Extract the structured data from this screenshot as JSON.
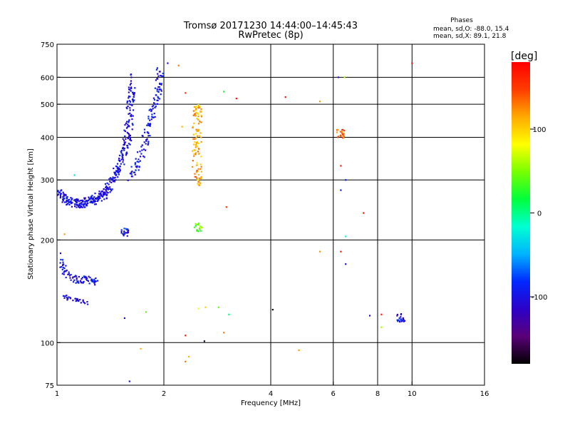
{
  "chart_data": {
    "type": "scatter",
    "title": "Tromsø 20171230 14:44:00–14:45:43",
    "subtitle": "RwPretec (8p)",
    "stats": {
      "heading": "Phases",
      "line1": "mean, sd,O: -88.0, 15.4",
      "line2": "mean, sd,X: 89.1, 21.8"
    },
    "xlabel": "Frequency [MHz]",
    "ylabel": "Stationary phase Virtual Height [km]",
    "x_scale": "log",
    "y_scale": "log",
    "xlim": [
      1,
      16
    ],
    "ylim": [
      75,
      750
    ],
    "x_ticks": [
      1,
      2,
      4,
      6,
      8,
      10,
      16
    ],
    "y_ticks": [
      75,
      100,
      200,
      300,
      400,
      500,
      600,
      750
    ],
    "x_gridlines": [
      2,
      4,
      6,
      8,
      10
    ],
    "y_gridlines": [
      100,
      200,
      300,
      400,
      500,
      600
    ],
    "grid": true,
    "colorbar": {
      "label": "[deg]",
      "range": [
        -180,
        180
      ],
      "ticks": [
        100,
        0,
        -100
      ],
      "colors": [
        "#000000",
        "#5a0078",
        "#2d00c8",
        "#0028ff",
        "#00b4ff",
        "#00ffd2",
        "#00ff3c",
        "#78ff00",
        "#ffff00",
        "#ffaa00",
        "#ff3c00",
        "#ff0000"
      ]
    },
    "o_mode_trace": [
      {
        "f": 1.0,
        "h": 275
      },
      {
        "f": 1.05,
        "h": 265
      },
      {
        "f": 1.1,
        "h": 258
      },
      {
        "f": 1.15,
        "h": 256
      },
      {
        "f": 1.2,
        "h": 257
      },
      {
        "f": 1.25,
        "h": 260
      },
      {
        "f": 1.3,
        "h": 265
      },
      {
        "f": 1.35,
        "h": 272
      },
      {
        "f": 1.4,
        "h": 285
      },
      {
        "f": 1.45,
        "h": 305
      },
      {
        "f": 1.5,
        "h": 330
      },
      {
        "f": 1.55,
        "h": 365
      },
      {
        "f": 1.58,
        "h": 400
      },
      {
        "f": 1.6,
        "h": 450
      },
      {
        "f": 1.62,
        "h": 520
      },
      {
        "f": 1.63,
        "h": 600
      }
    ],
    "x_mode_trace": [
      {
        "f": 1.6,
        "h": 300
      },
      {
        "f": 1.68,
        "h": 330
      },
      {
        "f": 1.75,
        "h": 370
      },
      {
        "f": 1.8,
        "h": 420
      },
      {
        "f": 1.85,
        "h": 470
      },
      {
        "f": 1.9,
        "h": 520
      },
      {
        "f": 1.93,
        "h": 570
      },
      {
        "f": 1.96,
        "h": 630
      }
    ],
    "e_layer_trace": [
      {
        "f": 1.02,
        "h": 180
      },
      {
        "f": 1.05,
        "h": 162
      },
      {
        "f": 1.08,
        "h": 155
      },
      {
        "f": 1.15,
        "h": 153
      },
      {
        "f": 1.2,
        "h": 153
      },
      {
        "f": 1.25,
        "h": 152
      },
      {
        "f": 1.3,
        "h": 150
      }
    ],
    "e_layer_low_trace": [
      {
        "f": 1.03,
        "h": 138
      },
      {
        "f": 1.08,
        "h": 134
      },
      {
        "f": 1.15,
        "h": 132
      },
      {
        "f": 1.22,
        "h": 131
      }
    ],
    "clusters": [
      {
        "f": 1.55,
        "h": 210,
        "phase": -95
      },
      {
        "f": 2.48,
        "h": 380,
        "phase": 115
      },
      {
        "f": 2.5,
        "h": 218,
        "phase": 40
      },
      {
        "f": 6.3,
        "h": 410,
        "phase": 140
      },
      {
        "f": 9.3,
        "h": 118,
        "phase": -100
      }
    ],
    "scatter_points": [
      {
        "f": 2.05,
        "h": 660,
        "phase": -100
      },
      {
        "f": 2.2,
        "h": 650,
        "phase": 130
      },
      {
        "f": 2.25,
        "h": 430,
        "phase": 110
      },
      {
        "f": 2.3,
        "h": 540,
        "phase": 150
      },
      {
        "f": 2.95,
        "h": 545,
        "phase": 20
      },
      {
        "f": 3.2,
        "h": 520,
        "phase": 170
      },
      {
        "f": 4.4,
        "h": 525,
        "phase": 170
      },
      {
        "f": 5.5,
        "h": 510,
        "phase": 120
      },
      {
        "f": 6.2,
        "h": 600,
        "phase": -100
      },
      {
        "f": 6.45,
        "h": 600,
        "phase": 60
      },
      {
        "f": 6.3,
        "h": 330,
        "phase": 170
      },
      {
        "f": 6.3,
        "h": 280,
        "phase": -90
      },
      {
        "f": 6.5,
        "h": 300,
        "phase": -90
      },
      {
        "f": 6.5,
        "h": 205,
        "phase": -20
      },
      {
        "f": 6.3,
        "h": 185,
        "phase": 170
      },
      {
        "f": 6.5,
        "h": 170,
        "phase": -100
      },
      {
        "f": 7.3,
        "h": 240,
        "phase": 170
      },
      {
        "f": 5.5,
        "h": 185,
        "phase": 120
      },
      {
        "f": 3.0,
        "h": 250,
        "phase": 150
      },
      {
        "f": 1.12,
        "h": 310,
        "phase": -30
      },
      {
        "f": 1.05,
        "h": 208,
        "phase": 120
      },
      {
        "f": 1.78,
        "h": 123,
        "phase": 40
      },
      {
        "f": 1.55,
        "h": 118,
        "phase": -110
      },
      {
        "f": 4.05,
        "h": 125,
        "phase": -180
      },
      {
        "f": 2.5,
        "h": 126,
        "phase": 80
      },
      {
        "f": 2.62,
        "h": 127,
        "phase": 100
      },
      {
        "f": 2.85,
        "h": 127,
        "phase": 40
      },
      {
        "f": 3.05,
        "h": 121,
        "phase": 0
      },
      {
        "f": 2.95,
        "h": 107,
        "phase": 130
      },
      {
        "f": 2.3,
        "h": 105,
        "phase": 170
      },
      {
        "f": 2.35,
        "h": 91,
        "phase": 110
      },
      {
        "f": 2.3,
        "h": 88,
        "phase": 130
      },
      {
        "f": 2.6,
        "h": 101,
        "phase": -170
      },
      {
        "f": 1.72,
        "h": 96,
        "phase": 110
      },
      {
        "f": 1.6,
        "h": 77,
        "phase": -100
      },
      {
        "f": 4.8,
        "h": 95,
        "phase": 120
      },
      {
        "f": 7.6,
        "h": 120,
        "phase": -100
      },
      {
        "f": 8.2,
        "h": 121,
        "phase": 160
      },
      {
        "f": 8.2,
        "h": 111,
        "phase": 60
      },
      {
        "f": 10.0,
        "h": 660,
        "phase": 170
      }
    ]
  }
}
